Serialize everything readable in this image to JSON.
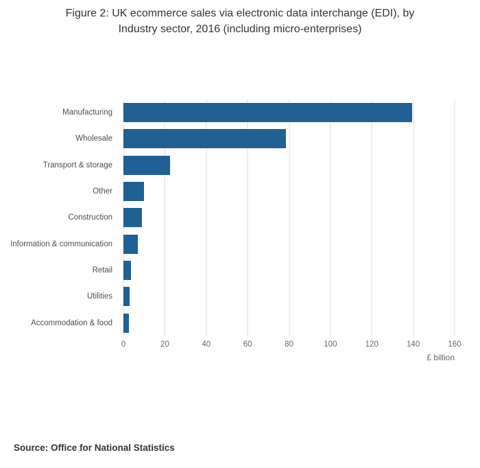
{
  "header": {
    "title_line1": "Figure 2: UK ecommerce sales via electronic data interchange (EDI), by",
    "title_line2": "Industry sector, 2016 (including micro-enterprises)"
  },
  "chart_data": {
    "type": "bar",
    "orientation": "horizontal",
    "title": "Figure 2: UK ecommerce sales via electronic data interchange (EDI), by Industry sector, 2016 (including micro-enterprises)",
    "categories": [
      "Manufacturing",
      "Wholesale",
      "Transport & storage",
      "Other",
      "Construction",
      "Information & communication",
      "Retail",
      "Utilities",
      "Accommodation & food"
    ],
    "values": [
      139.5,
      78.5,
      22.5,
      10,
      9,
      7,
      3.5,
      3,
      2.5
    ],
    "xlabel": "£ billion",
    "ylabel": "",
    "xlim": [
      0,
      160
    ],
    "xticks": [
      0,
      20,
      40,
      60,
      80,
      100,
      120,
      140,
      160
    ],
    "grid": true,
    "legend_position": "none",
    "bar_color": "#206095"
  },
  "footer": {
    "source": "Source: Office for National Statistics"
  }
}
